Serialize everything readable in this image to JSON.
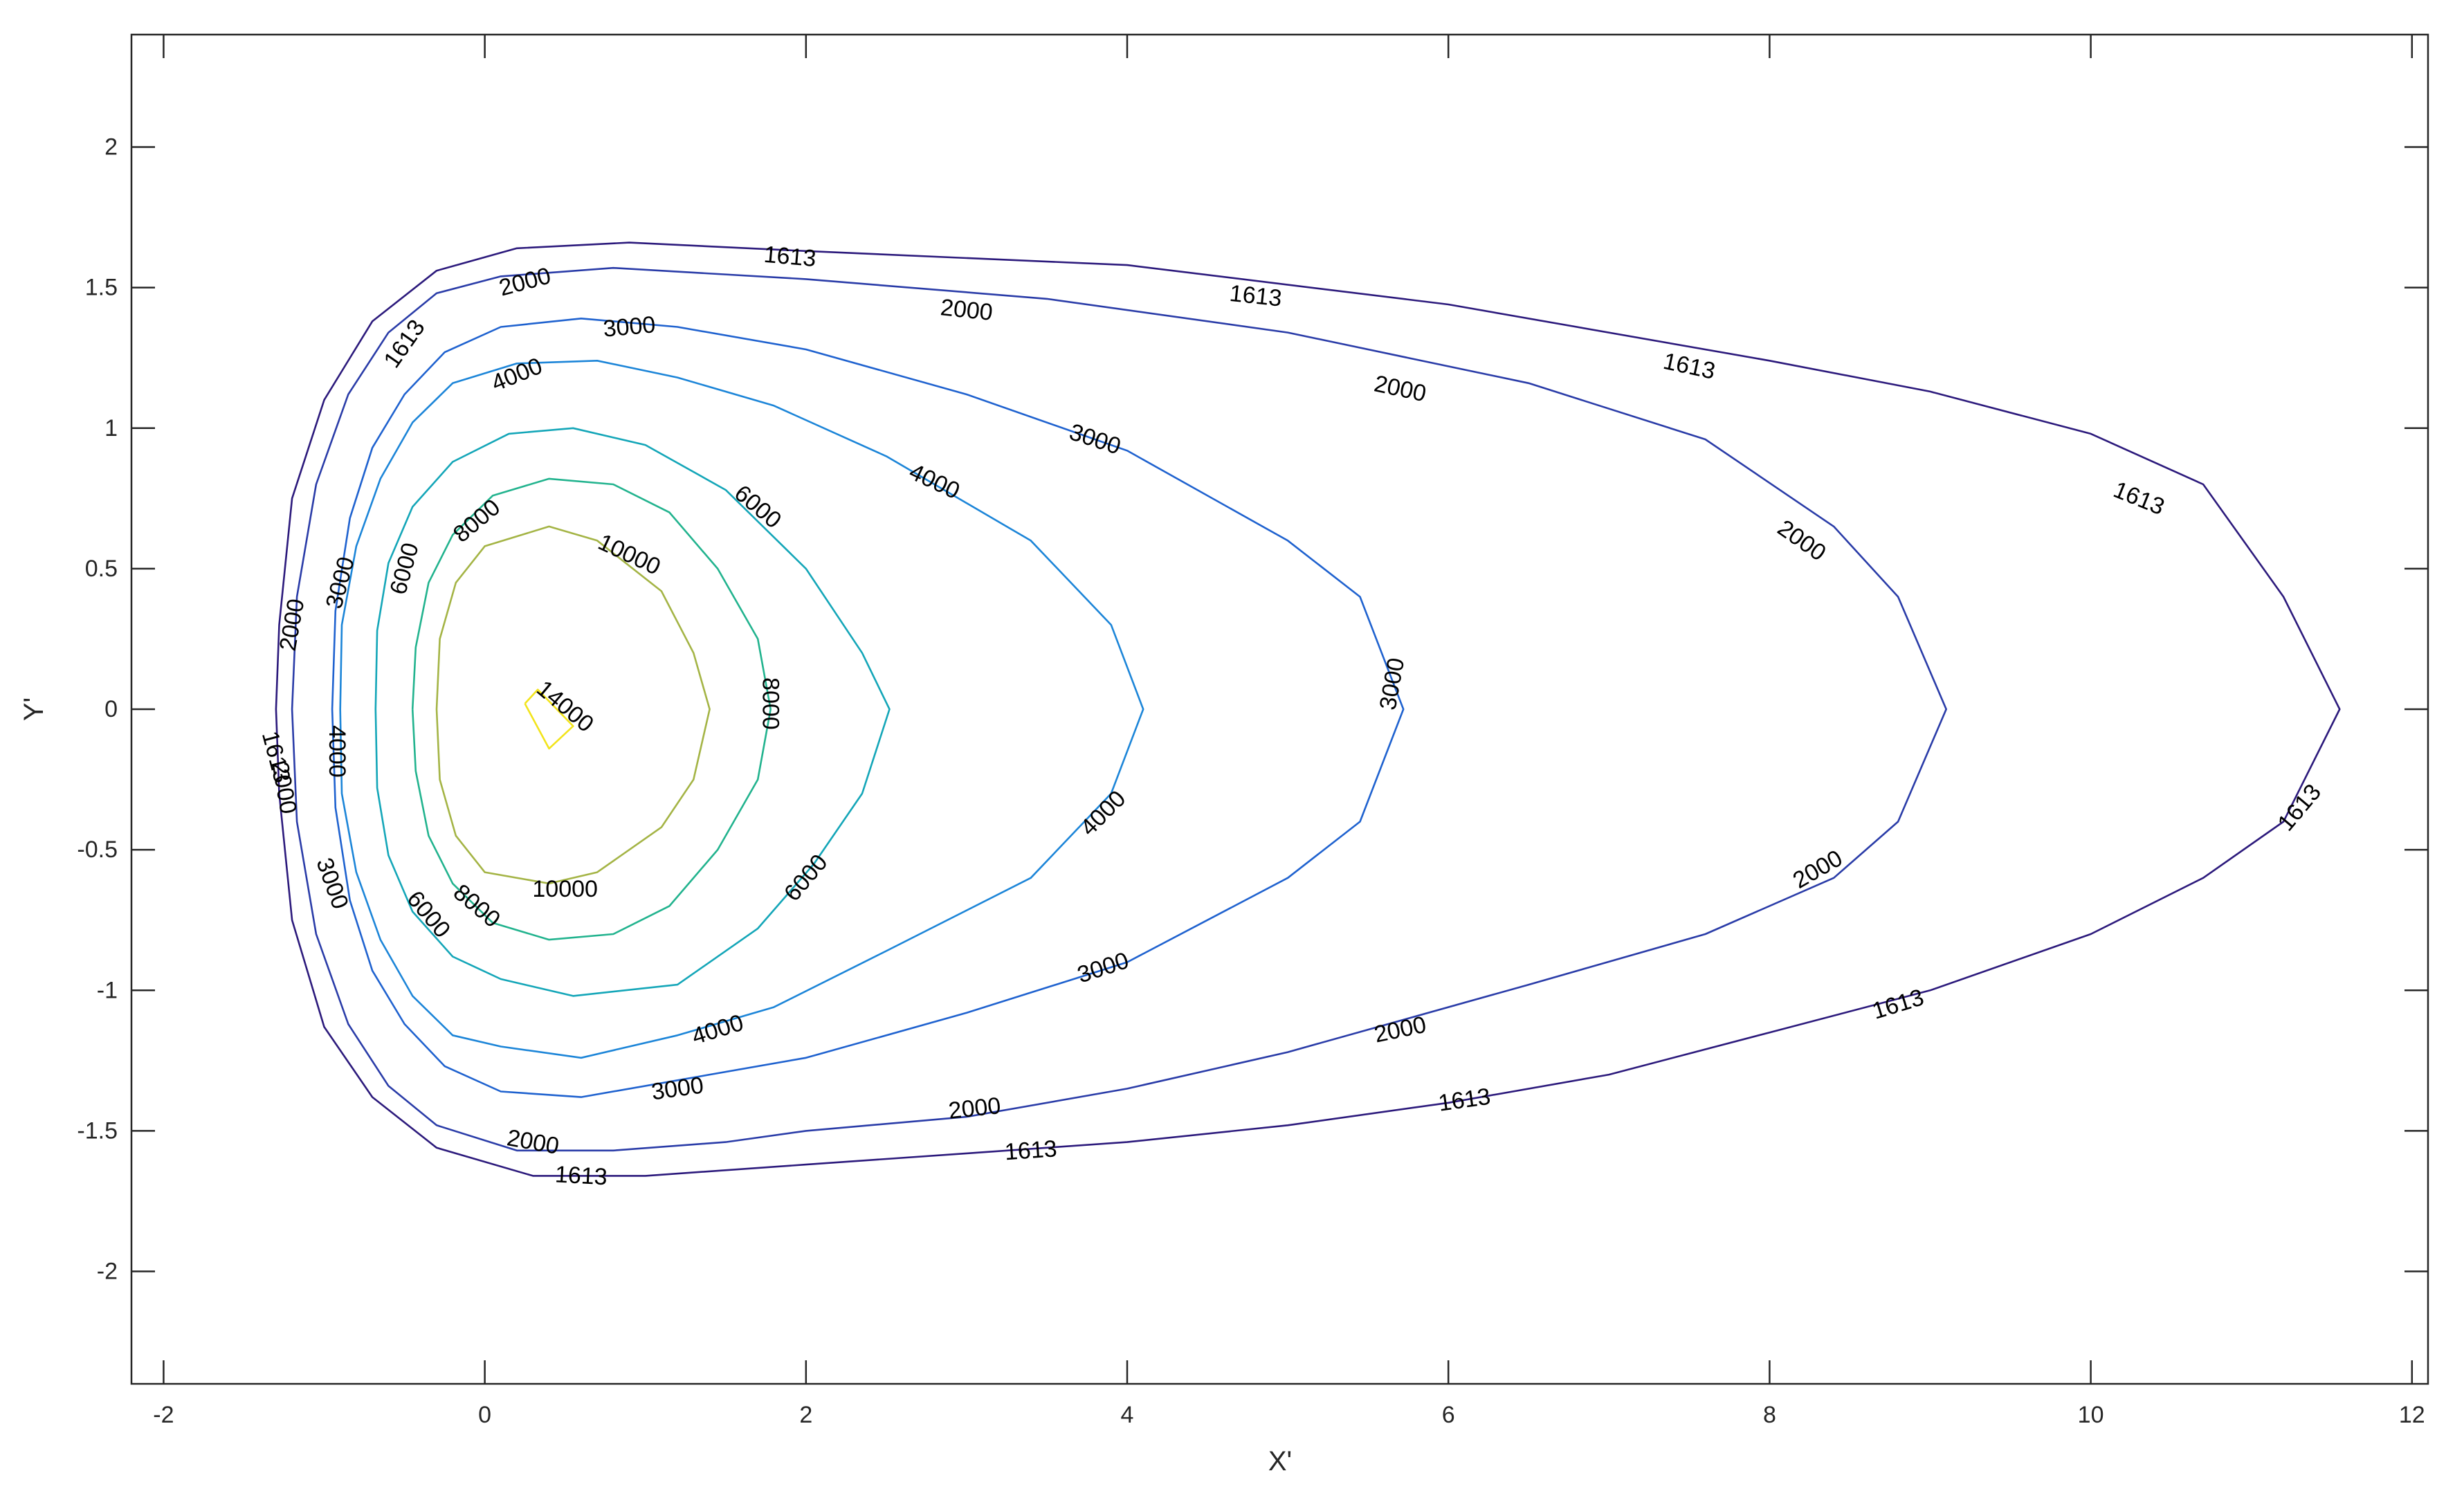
{
  "chart_data": {
    "type": "contour",
    "xlabel": "X'",
    "ylabel": "Y'",
    "xlim": [
      -2.2,
      12.1
    ],
    "ylim": [
      -2.4,
      2.4
    ],
    "xticks": [
      -2,
      0,
      2,
      4,
      6,
      8,
      10,
      12
    ],
    "yticks": [
      -2,
      -1.5,
      -1,
      -0.5,
      0,
      0.5,
      1,
      1.5,
      2
    ],
    "xtick_labels": [
      "-2",
      "0",
      "2",
      "4",
      "6",
      "8",
      "10",
      "12"
    ],
    "ytick_labels": [
      "-2",
      "-1.5",
      "-1",
      "-0.5",
      "0",
      "0.5",
      "1",
      "1.5",
      "2"
    ],
    "box": true,
    "grid": false,
    "levels": [
      {
        "level": "1613",
        "color": "#2c1a7c",
        "points": [
          [
            -1.3,
            0
          ],
          [
            -1.28,
            0.3
          ],
          [
            -1.2,
            0.75
          ],
          [
            -1.0,
            1.1
          ],
          [
            -0.7,
            1.38
          ],
          [
            -0.3,
            1.56
          ],
          [
            0.2,
            1.64
          ],
          [
            0.9,
            1.66
          ],
          [
            2.0,
            1.63
          ],
          [
            4.0,
            1.58
          ],
          [
            6.0,
            1.44
          ],
          [
            8.0,
            1.24
          ],
          [
            9.0,
            1.13
          ],
          [
            10.0,
            0.98
          ],
          [
            10.7,
            0.8
          ],
          [
            11.2,
            0.4
          ],
          [
            11.55,
            0
          ],
          [
            11.2,
            -0.4
          ],
          [
            10.7,
            -0.6
          ],
          [
            10.0,
            -0.8
          ],
          [
            9.0,
            -1.0
          ],
          [
            8.0,
            -1.15
          ],
          [
            7.0,
            -1.3
          ],
          [
            6.0,
            -1.4
          ],
          [
            5.0,
            -1.48
          ],
          [
            4.0,
            -1.54
          ],
          [
            3.0,
            -1.58
          ],
          [
            2.0,
            -1.62
          ],
          [
            1.0,
            -1.66
          ],
          [
            0.3,
            -1.66
          ],
          [
            -0.3,
            -1.56
          ],
          [
            -0.7,
            -1.38
          ],
          [
            -1.0,
            -1.13
          ],
          [
            -1.2,
            -0.75
          ],
          [
            -1.28,
            -0.3
          ],
          [
            -1.3,
            0
          ]
        ],
        "labels": [
          [
            -0.5,
            1.3,
            -55
          ],
          [
            1.9,
            1.61,
            5
          ],
          [
            4.8,
            1.47,
            6
          ],
          [
            7.5,
            1.22,
            12
          ],
          [
            10.3,
            0.75,
            22
          ],
          [
            11.3,
            -0.35,
            -50
          ],
          [
            8.8,
            -1.05,
            -17
          ],
          [
            6.1,
            -1.39,
            -8
          ],
          [
            3.4,
            -1.57,
            -4
          ],
          [
            0.6,
            -1.66,
            3
          ],
          [
            -1.3,
            -0.17,
            75
          ]
        ]
      },
      {
        "level": "2000",
        "color": "#2a3ca8",
        "points": [
          [
            -1.2,
            0
          ],
          [
            -1.17,
            0.4
          ],
          [
            -1.05,
            0.8
          ],
          [
            -0.85,
            1.12
          ],
          [
            -0.6,
            1.34
          ],
          [
            -0.3,
            1.48
          ],
          [
            0.1,
            1.54
          ],
          [
            0.8,
            1.57
          ],
          [
            2.0,
            1.53
          ],
          [
            3.5,
            1.46
          ],
          [
            5.0,
            1.34
          ],
          [
            6.5,
            1.16
          ],
          [
            7.6,
            0.96
          ],
          [
            8.4,
            0.65
          ],
          [
            8.8,
            0.4
          ],
          [
            9.1,
            0
          ],
          [
            8.8,
            -0.4
          ],
          [
            8.4,
            -0.6
          ],
          [
            7.6,
            -0.8
          ],
          [
            6.5,
            -0.98
          ],
          [
            5.0,
            -1.22
          ],
          [
            4.0,
            -1.35
          ],
          [
            3.0,
            -1.45
          ],
          [
            2.0,
            -1.5
          ],
          [
            1.5,
            -1.54
          ],
          [
            0.8,
            -1.57
          ],
          [
            0.2,
            -1.57
          ],
          [
            -0.3,
            -1.48
          ],
          [
            -0.6,
            -1.34
          ],
          [
            -0.85,
            -1.12
          ],
          [
            -1.05,
            -0.8
          ],
          [
            -1.17,
            -0.4
          ],
          [
            -1.2,
            0
          ]
        ],
        "labels": [
          [
            0.25,
            1.52,
            -15
          ],
          [
            3.0,
            1.42,
            6
          ],
          [
            5.7,
            1.14,
            12
          ],
          [
            8.2,
            0.6,
            35
          ],
          [
            8.3,
            -0.57,
            -30
          ],
          [
            5.7,
            -1.14,
            -12
          ],
          [
            3.05,
            -1.42,
            -6
          ],
          [
            0.3,
            -1.54,
            10
          ],
          [
            -1.2,
            0.3,
            -80
          ],
          [
            -1.25,
            -0.28,
            80
          ]
        ]
      },
      {
        "level": "3000",
        "color": "#1f62cf",
        "points": [
          [
            -0.95,
            0
          ],
          [
            -0.93,
            0.35
          ],
          [
            -0.84,
            0.68
          ],
          [
            -0.7,
            0.93
          ],
          [
            -0.5,
            1.12
          ],
          [
            -0.25,
            1.27
          ],
          [
            0.1,
            1.36
          ],
          [
            0.6,
            1.39
          ],
          [
            1.2,
            1.36
          ],
          [
            2.0,
            1.28
          ],
          [
            3.0,
            1.12
          ],
          [
            4.0,
            0.92
          ],
          [
            5.0,
            0.6
          ],
          [
            5.45,
            0.4
          ],
          [
            5.72,
            0
          ],
          [
            5.45,
            -0.4
          ],
          [
            5.0,
            -0.6
          ],
          [
            4.0,
            -0.9
          ],
          [
            3.0,
            -1.08
          ],
          [
            2.0,
            -1.24
          ],
          [
            1.2,
            -1.32
          ],
          [
            0.6,
            -1.38
          ],
          [
            0.1,
            -1.36
          ],
          [
            -0.25,
            -1.27
          ],
          [
            -0.5,
            -1.12
          ],
          [
            -0.7,
            -0.93
          ],
          [
            -0.84,
            -0.68
          ],
          [
            -0.93,
            -0.35
          ],
          [
            -0.95,
            0
          ]
        ],
        "labels": [
          [
            0.9,
            1.36,
            -5
          ],
          [
            3.8,
            0.96,
            18
          ],
          [
            5.65,
            0.09,
            -80
          ],
          [
            3.85,
            -0.92,
            -18
          ],
          [
            1.2,
            -1.35,
            -8
          ],
          [
            -0.9,
            0.45,
            -75
          ],
          [
            -0.95,
            -0.62,
            70
          ]
        ]
      },
      {
        "level": "4000",
        "color": "#1c85d8",
        "points": [
          [
            -0.9,
            0
          ],
          [
            -0.89,
            0.3
          ],
          [
            -0.8,
            0.58
          ],
          [
            -0.65,
            0.82
          ],
          [
            -0.45,
            1.02
          ],
          [
            -0.2,
            1.16
          ],
          [
            0.2,
            1.23
          ],
          [
            0.7,
            1.24
          ],
          [
            1.2,
            1.18
          ],
          [
            1.8,
            1.08
          ],
          [
            2.5,
            0.9
          ],
          [
            3.4,
            0.6
          ],
          [
            3.9,
            0.3
          ],
          [
            4.1,
            0
          ],
          [
            3.9,
            -0.3
          ],
          [
            3.4,
            -0.6
          ],
          [
            2.5,
            -0.86
          ],
          [
            1.8,
            -1.06
          ],
          [
            1.2,
            -1.16
          ],
          [
            0.6,
            -1.24
          ],
          [
            0.1,
            -1.2
          ],
          [
            -0.2,
            -1.16
          ],
          [
            -0.45,
            -1.02
          ],
          [
            -0.65,
            -0.82
          ],
          [
            -0.8,
            -0.58
          ],
          [
            -0.89,
            -0.3
          ],
          [
            -0.9,
            0
          ]
        ],
        "labels": [
          [
            0.2,
            1.19,
            -22
          ],
          [
            2.8,
            0.81,
            25
          ],
          [
            3.85,
            -0.37,
            -45
          ],
          [
            1.45,
            -1.14,
            -17
          ],
          [
            -0.92,
            -0.15,
            90
          ]
        ]
      },
      {
        "level": "6000",
        "color": "#14a6b8",
        "points": [
          [
            -0.68,
            0
          ],
          [
            -0.67,
            0.28
          ],
          [
            -0.6,
            0.52
          ],
          [
            -0.45,
            0.72
          ],
          [
            -0.2,
            0.88
          ],
          [
            0.15,
            0.98
          ],
          [
            0.55,
            1.0
          ],
          [
            1.0,
            0.94
          ],
          [
            1.5,
            0.78
          ],
          [
            2.0,
            0.5
          ],
          [
            2.35,
            0.2
          ],
          [
            2.52,
            0
          ],
          [
            2.35,
            -0.3
          ],
          [
            2.05,
            -0.55
          ],
          [
            1.7,
            -0.78
          ],
          [
            1.2,
            -0.98
          ],
          [
            0.55,
            -1.02
          ],
          [
            0.1,
            -0.96
          ],
          [
            -0.2,
            -0.88
          ],
          [
            -0.45,
            -0.72
          ],
          [
            -0.6,
            -0.52
          ],
          [
            -0.67,
            -0.28
          ],
          [
            -0.68,
            0
          ]
        ],
        "labels": [
          [
            1.7,
            0.72,
            40
          ],
          [
            2.0,
            -0.6,
            -50
          ],
          [
            -0.5,
            0.5,
            -75
          ],
          [
            -0.35,
            -0.73,
            50
          ]
        ]
      },
      {
        "level": "8000",
        "color": "#22b38e",
        "points": [
          [
            -0.45,
            0
          ],
          [
            -0.43,
            0.22
          ],
          [
            -0.35,
            0.45
          ],
          [
            -0.2,
            0.62
          ],
          [
            0.05,
            0.76
          ],
          [
            0.4,
            0.82
          ],
          [
            0.8,
            0.8
          ],
          [
            1.15,
            0.7
          ],
          [
            1.45,
            0.5
          ],
          [
            1.7,
            0.25
          ],
          [
            1.78,
            0
          ],
          [
            1.7,
            -0.25
          ],
          [
            1.45,
            -0.5
          ],
          [
            1.15,
            -0.7
          ],
          [
            0.8,
            -0.8
          ],
          [
            0.4,
            -0.82
          ],
          [
            0.05,
            -0.76
          ],
          [
            -0.2,
            -0.62
          ],
          [
            -0.35,
            -0.45
          ],
          [
            -0.43,
            -0.22
          ],
          [
            -0.45,
            0
          ]
        ],
        "labels": [
          [
            -0.05,
            0.67,
            -40
          ],
          [
            1.78,
            0.02,
            90
          ],
          [
            -0.05,
            -0.7,
            40
          ]
        ]
      },
      {
        "level": "10000",
        "color": "#a4b445",
        "points": [
          [
            -0.3,
            0
          ],
          [
            -0.28,
            0.25
          ],
          [
            -0.18,
            0.45
          ],
          [
            0.0,
            0.58
          ],
          [
            0.4,
            0.65
          ],
          [
            0.7,
            0.6
          ],
          [
            1.1,
            0.42
          ],
          [
            1.3,
            0.2
          ],
          [
            1.4,
            0
          ],
          [
            1.3,
            -0.25
          ],
          [
            1.1,
            -0.42
          ],
          [
            0.7,
            -0.58
          ],
          [
            0.4,
            -0.62
          ],
          [
            0.0,
            -0.58
          ],
          [
            -0.18,
            -0.45
          ],
          [
            -0.28,
            -0.25
          ],
          [
            -0.3,
            0
          ]
        ],
        "labels": [
          [
            0.9,
            0.55,
            25
          ],
          [
            0.5,
            -0.64,
            0
          ]
        ]
      },
      {
        "level": "14000",
        "color": "#f2e41b",
        "points": [
          [
            0.25,
            0.02
          ],
          [
            0.33,
            0.07
          ],
          [
            0.55,
            -0.06
          ],
          [
            0.4,
            -0.14
          ],
          [
            0.25,
            0.02
          ]
        ],
        "labels": [
          [
            0.5,
            0.01,
            40
          ]
        ]
      }
    ]
  }
}
